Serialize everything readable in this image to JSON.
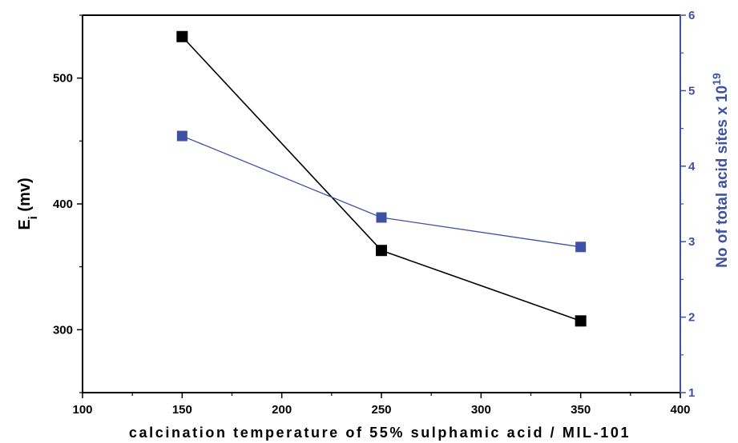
{
  "chart_data": {
    "type": "line",
    "xlabel": "calcination temperature of 55% sulphamic acid / MIL-101",
    "ylabel_left": {
      "main": "E",
      "sub": "i",
      "rest": " (mv)"
    },
    "ylabel_right": {
      "main": "No of total acid sites x 10",
      "sup": "19"
    },
    "xlim": [
      100,
      400
    ],
    "ylim_left": [
      250,
      550
    ],
    "ylim_right": [
      1,
      6
    ],
    "xticks": [
      "100",
      "150",
      "200",
      "250",
      "300",
      "350",
      "400"
    ],
    "yticks_left": [
      "300",
      "400",
      "500"
    ],
    "yticks_right": [
      "1",
      "2",
      "3",
      "4",
      "5",
      "6"
    ],
    "grid": false,
    "colors": {
      "left_series": "#000000",
      "right_series": "#3f51a3",
      "right_axis": "#3f51a3"
    },
    "series": [
      {
        "axis": "left",
        "x": [
          150,
          250,
          350
        ],
        "y": [
          533,
          363,
          307
        ]
      },
      {
        "axis": "right",
        "x": [
          150,
          250,
          350
        ],
        "y": [
          4.4,
          3.32,
          2.93
        ]
      }
    ]
  }
}
